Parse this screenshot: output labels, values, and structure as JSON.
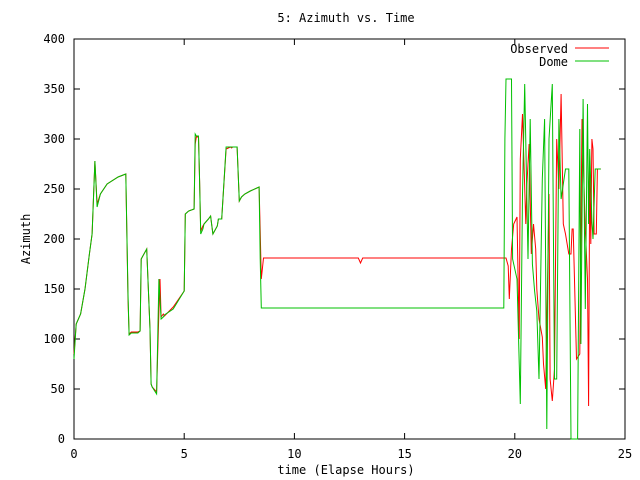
{
  "chart_data": {
    "type": "line",
    "title": "5: Azimuth vs. Time",
    "xlabel": "time (Elapse Hours)",
    "ylabel": "Azimuth",
    "xlim": [
      0,
      25
    ],
    "ylim": [
      0,
      400
    ],
    "x_ticks": [
      "0",
      "5",
      "10",
      "15",
      "20",
      "25"
    ],
    "y_ticks": [
      "0",
      "50",
      "100",
      "150",
      "200",
      "250",
      "300",
      "350",
      "400"
    ],
    "x_tick_values": [
      0,
      5,
      10,
      15,
      20,
      25
    ],
    "y_tick_values": [
      0,
      50,
      100,
      150,
      200,
      250,
      300,
      350,
      400
    ],
    "grid": false,
    "legend_position": "top-right",
    "series": [
      {
        "name": "Observed",
        "color": "#ff0000",
        "x": [
          0,
          0.1,
          0.3,
          0.5,
          0.7,
          0.82,
          0.95,
          1.05,
          1.2,
          1.5,
          2.0,
          2.35,
          2.45,
          2.5,
          2.6,
          2.9,
          3.0,
          3.05,
          3.1,
          3.3,
          3.45,
          3.5,
          3.55,
          3.75,
          3.85,
          3.9,
          3.95,
          4.05,
          4.1,
          4.5,
          5.0,
          5.05,
          5.2,
          5.45,
          5.5,
          5.55,
          5.65,
          5.7,
          5.75,
          5.85,
          5.9,
          6.1,
          6.2,
          6.3,
          6.5,
          6.55,
          6.7,
          6.9,
          7.1,
          7.15,
          7.2,
          7.4,
          7.5,
          7.6,
          7.75,
          8.0,
          8.4,
          8.45,
          8.5,
          8.6,
          8.7,
          12.9,
          13.0,
          13.1,
          19.6,
          19.7,
          19.75,
          19.85,
          19.95,
          20.1,
          20.2,
          20.25,
          20.35,
          20.5,
          20.55,
          20.65,
          20.75,
          20.85,
          20.95,
          21.0,
          21.1,
          21.25,
          21.3,
          21.4,
          21.55,
          21.6,
          21.7,
          21.8,
          21.9,
          22.0,
          22.1,
          22.2,
          22.3,
          22.45,
          22.55,
          22.6,
          22.65,
          22.8,
          22.95,
          23.05,
          23.2,
          23.3,
          23.35,
          23.4,
          23.45,
          23.5,
          23.55,
          23.6,
          23.7,
          23.75,
          23.8,
          23.85,
          23.9
        ],
        "y": [
          85,
          115,
          125,
          150,
          185,
          205,
          278,
          235,
          245,
          255,
          262,
          265,
          140,
          105,
          107,
          107,
          108,
          180,
          182,
          190,
          110,
          55,
          52,
          47,
          128,
          160,
          122,
          125,
          123,
          132,
          148,
          225,
          228,
          230,
          295,
          302,
          302,
          258,
          208,
          213,
          215,
          220,
          223,
          205,
          213,
          220,
          220,
          290,
          292,
          291,
          292,
          292,
          238,
          242,
          245,
          248,
          252,
          208,
          160,
          181,
          181,
          181,
          176,
          181,
          181,
          173,
          140,
          190,
          215,
          222,
          100,
          280,
          325,
          215,
          255,
          295,
          185,
          215,
          190,
          150,
          120,
          102,
          75,
          50,
          245,
          60,
          38,
          70,
          300,
          250,
          345,
          215,
          205,
          185,
          185,
          210,
          210,
          80,
          85,
          320,
          210,
          160,
          33,
          270,
          195,
          300,
          290,
          205,
          205,
          270,
          270,
          270,
          270
        ]
      },
      {
        "name": "Dome",
        "color": "#00c000",
        "x": [
          0,
          0.1,
          0.3,
          0.5,
          0.7,
          0.82,
          0.95,
          1.05,
          1.2,
          1.5,
          2.0,
          2.35,
          2.45,
          2.5,
          2.6,
          2.9,
          3.0,
          3.05,
          3.1,
          3.3,
          3.45,
          3.5,
          3.55,
          3.75,
          3.85,
          3.9,
          3.95,
          4.05,
          4.1,
          4.5,
          5.0,
          5.05,
          5.2,
          5.45,
          5.5,
          5.55,
          5.65,
          5.7,
          5.75,
          5.85,
          5.9,
          6.1,
          6.2,
          6.3,
          6.5,
          6.55,
          6.7,
          6.9,
          7.1,
          7.15,
          7.2,
          7.4,
          7.5,
          7.6,
          7.75,
          8.0,
          8.4,
          8.45,
          8.5,
          8.6,
          10.0,
          15.0,
          19.5,
          19.55,
          19.6,
          19.85,
          19.9,
          20.1,
          20.25,
          20.35,
          20.45,
          20.6,
          20.7,
          20.8,
          20.9,
          21.0,
          21.1,
          21.25,
          21.35,
          21.45,
          21.55,
          21.7,
          21.8,
          21.9,
          22.0,
          22.1,
          22.2,
          22.3,
          22.45,
          22.55,
          22.7,
          22.85,
          22.95,
          23.0,
          23.1,
          23.2,
          23.3,
          23.35,
          23.4,
          23.5,
          23.55,
          23.65,
          23.75,
          23.8,
          23.9
        ],
        "y": [
          80,
          115,
          125,
          150,
          185,
          205,
          278,
          232,
          245,
          255,
          262,
          265,
          145,
          104,
          106,
          106,
          108,
          180,
          182,
          190,
          110,
          55,
          52,
          45,
          160,
          140,
          120,
          122,
          124,
          130,
          148,
          225,
          228,
          230,
          305,
          303,
          303,
          258,
          205,
          210,
          215,
          220,
          223,
          205,
          213,
          220,
          220,
          292,
          292,
          292,
          292,
          292,
          238,
          242,
          245,
          248,
          252,
          180,
          131,
          131,
          131,
          131,
          131,
          300,
          360,
          360,
          180,
          160,
          35,
          245,
          355,
          180,
          320,
          175,
          148,
          128,
          60,
          260,
          320,
          10,
          300,
          355,
          60,
          60,
          320,
          240,
          255,
          270,
          270,
          0,
          0,
          0,
          310,
          95,
          340,
          130,
          335,
          215,
          290,
          218,
          200,
          270,
          270,
          270,
          270
        ]
      }
    ]
  }
}
